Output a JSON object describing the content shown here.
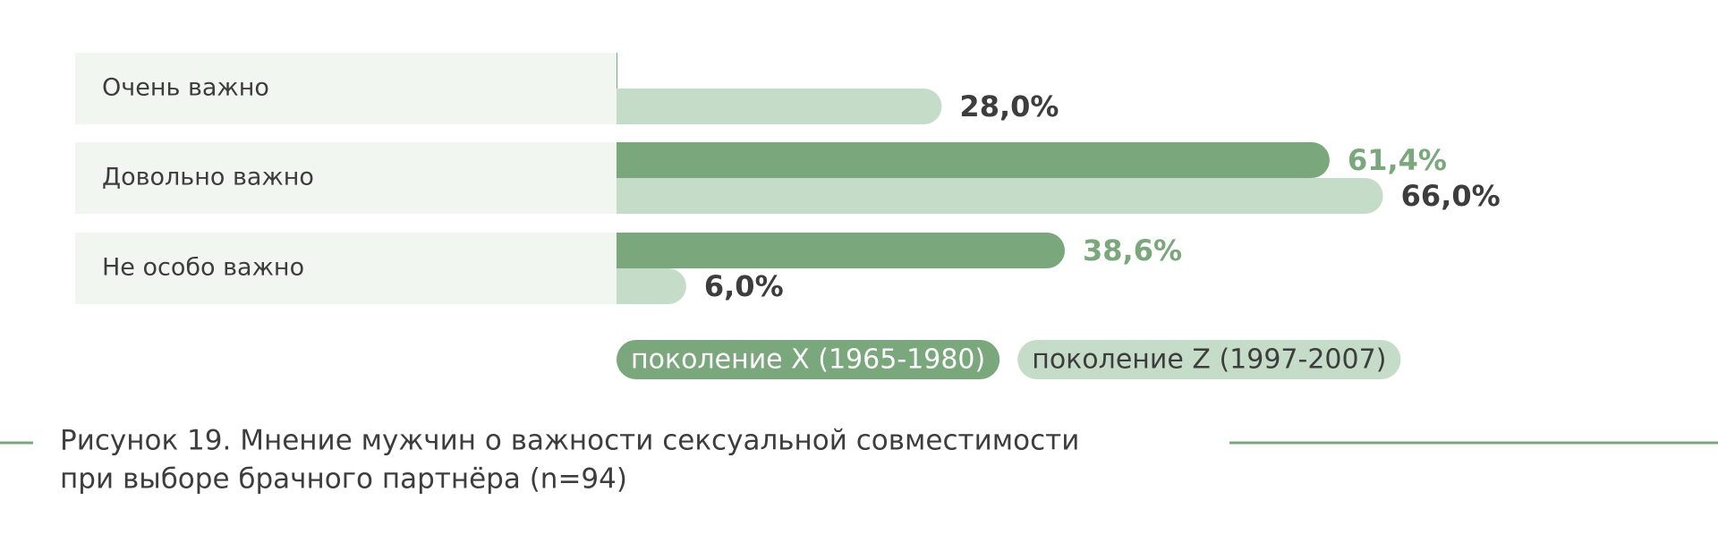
{
  "chart_data": {
    "type": "bar",
    "orientation": "horizontal",
    "categories": [
      "Очень важно",
      "Довольно важно",
      "Не особо важно"
    ],
    "series": [
      {
        "name": "поколение X (1965-1980)",
        "color": "#7aa77b",
        "values": [
          0,
          61.4,
          38.6
        ],
        "value_labels": [
          null,
          "61,4%",
          "38,6%"
        ]
      },
      {
        "name": "поколение Z (1997-2007)",
        "color": "#c5dcc8",
        "values": [
          28.0,
          66.0,
          6.0
        ],
        "value_labels": [
          "28,0%",
          "66,0%",
          "6,0%"
        ]
      }
    ],
    "caption": [
      "Рисунок 19. Мнение мужчин о важности сексуальной совместимости",
      "при выборе брачного партнёра (n=94)"
    ]
  }
}
